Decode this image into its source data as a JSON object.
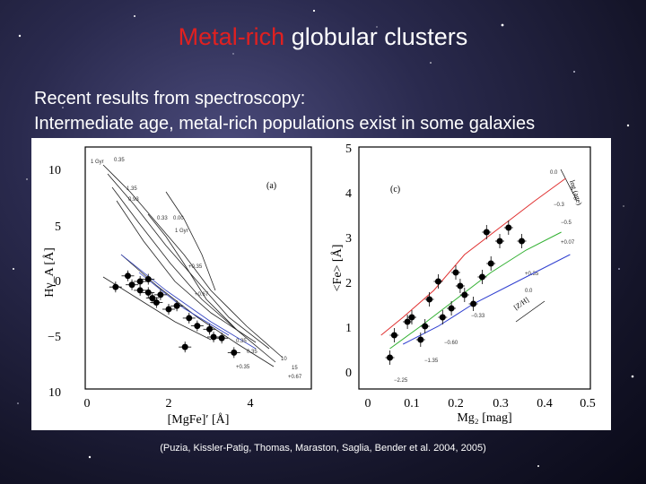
{
  "slide": {
    "title_highlight": "Metal-rich",
    "title_rest": " globular clusters",
    "line1": "Recent results from spectroscopy:",
    "line2": "Intermediate age, metal-rich populations exist in some galaxies",
    "citation": "(Puzia, Kissler-Patig, Thomas, Maraston, Saglia, Bender et al. 2004, 2005)",
    "title_highlight_color": "#e02020"
  },
  "panel_a": {
    "label": "(a)",
    "xlabel": "[MgFe]′ [Å]",
    "ylabel": "Hγ_A [Å]",
    "xticks": [
      "0",
      "2",
      "4"
    ],
    "yticks": [
      "10",
      "5",
      "0",
      "−5",
      "10"
    ],
    "grid_annotations": [
      "1 Gyr",
      "1 Gyr",
      "0.35",
      "0.33",
      "0.00",
      "1.35",
      "0.93",
      "+0.35",
      "+0.67",
      "0.35",
      "0.35",
      "10",
      "15",
      "+0.35",
      "+0.67"
    ],
    "clusters": [
      {
        "x": 1.0,
        "y": 0.5
      },
      {
        "x": 1.1,
        "y": -0.3
      },
      {
        "x": 1.3,
        "y": -0.8
      },
      {
        "x": 1.5,
        "y": -1.0
      },
      {
        "x": 1.6,
        "y": -1.5
      },
      {
        "x": 1.7,
        "y": -1.9
      },
      {
        "x": 1.8,
        "y": -1.2
      },
      {
        "x": 2.0,
        "y": -2.5
      },
      {
        "x": 2.2,
        "y": -2.2
      },
      {
        "x": 2.5,
        "y": -3.3
      },
      {
        "x": 2.7,
        "y": -4.0
      },
      {
        "x": 3.0,
        "y": -4.3
      },
      {
        "x": 3.1,
        "y": -5.0
      },
      {
        "x": 3.3,
        "y": -5.1
      },
      {
        "x": 2.4,
        "y": -5.9
      },
      {
        "x": 1.3,
        "y": 0.0
      },
      {
        "x": 1.5,
        "y": 0.2
      },
      {
        "x": 3.6,
        "y": -6.4
      },
      {
        "x": 0.7,
        "y": -0.5
      }
    ]
  },
  "panel_c": {
    "label": "(c)",
    "xlabel": "Mg₂ [mag]",
    "ylabel": "<Fe> [Å]",
    "xticks": [
      "0",
      "0.1",
      "0.2",
      "0.3",
      "0.4",
      "0.5"
    ],
    "yticks": [
      "0",
      "1",
      "2",
      "3",
      "4",
      "5"
    ],
    "rotated_labels": [
      "log (age)",
      "[Z/H]"
    ],
    "track_labels": [
      "0.0",
      "−0.3",
      "−0.5",
      "+0.07",
      "−0.33",
      "−0.60",
      "−1.35",
      "−2.25",
      "+0.35",
      "0.0"
    ],
    "tracks": [
      {
        "name": "red",
        "color": "#e03030",
        "x": [
          0.03,
          0.08,
          0.15,
          0.22,
          0.3,
          0.38,
          0.45
        ],
        "y": [
          0.8,
          1.2,
          1.8,
          2.6,
          3.2,
          3.8,
          4.3
        ]
      },
      {
        "name": "green",
        "color": "#30b030",
        "x": [
          0.05,
          0.12,
          0.2,
          0.28,
          0.36,
          0.44
        ],
        "y": [
          0.5,
          1.0,
          1.6,
          2.2,
          2.7,
          3.1
        ]
      },
      {
        "name": "blue",
        "color": "#3040d0",
        "x": [
          0.08,
          0.16,
          0.24,
          0.32,
          0.4,
          0.46
        ],
        "y": [
          0.6,
          1.0,
          1.5,
          1.9,
          2.3,
          2.6
        ]
      }
    ],
    "clusters": [
      {
        "x": 0.06,
        "y": 0.8
      },
      {
        "x": 0.1,
        "y": 1.2
      },
      {
        "x": 0.12,
        "y": 0.7
      },
      {
        "x": 0.14,
        "y": 1.6
      },
      {
        "x": 0.17,
        "y": 1.2
      },
      {
        "x": 0.19,
        "y": 1.4
      },
      {
        "x": 0.21,
        "y": 1.9
      },
      {
        "x": 0.22,
        "y": 1.7
      },
      {
        "x": 0.24,
        "y": 1.5
      },
      {
        "x": 0.26,
        "y": 2.1
      },
      {
        "x": 0.28,
        "y": 2.4
      },
      {
        "x": 0.3,
        "y": 2.9
      },
      {
        "x": 0.32,
        "y": 3.2
      },
      {
        "x": 0.27,
        "y": 3.1
      },
      {
        "x": 0.16,
        "y": 2.0
      },
      {
        "x": 0.09,
        "y": 1.1
      },
      {
        "x": 0.2,
        "y": 2.2
      },
      {
        "x": 0.13,
        "y": 1.0
      },
      {
        "x": 0.35,
        "y": 2.9
      },
      {
        "x": 0.05,
        "y": 0.3
      }
    ]
  }
}
